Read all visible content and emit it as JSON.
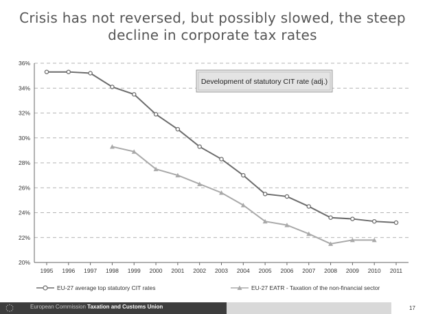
{
  "title": {
    "line1": "Crisis has not reversed, but possibly slowed, the steep",
    "line2": "decline in corporate tax rates"
  },
  "chart_data": {
    "type": "line",
    "annotation": "Development of statutory CIT rate (adj.)",
    "x": [
      "1995",
      "1996",
      "1997",
      "1998",
      "1999",
      "2000",
      "2001",
      "2002",
      "2003",
      "2004",
      "2005",
      "2006",
      "2007",
      "2008",
      "2009",
      "2010",
      "2011"
    ],
    "ylim": [
      20,
      36
    ],
    "yticks": [
      "20%",
      "22%",
      "24%",
      "26%",
      "28%",
      "30%",
      "32%",
      "34%",
      "36%"
    ],
    "grid": "horizontal dashed",
    "legend_position": "bottom",
    "series": [
      {
        "name": "EU-27 average top statutory CIT rates",
        "marker": "circle",
        "color": "#6b6b6b",
        "values": [
          35.3,
          35.3,
          35.2,
          34.1,
          33.5,
          31.9,
          30.7,
          29.3,
          28.3,
          27.0,
          25.5,
          25.3,
          24.5,
          23.6,
          23.5,
          23.3,
          23.2
        ]
      },
      {
        "name": "EU-27 EATR - Taxation of the non-financial sector",
        "marker": "triangle",
        "color": "#a9a9a9",
        "values": [
          null,
          null,
          null,
          29.3,
          28.9,
          27.5,
          27.0,
          26.3,
          25.6,
          24.6,
          23.3,
          23.0,
          22.3,
          21.5,
          21.8,
          21.8,
          null
        ]
      }
    ]
  },
  "legend": {
    "series1": "EU-27 average top statutory CIT rates",
    "series2": "EU-27 EATR - Taxation of the non-financial sector"
  },
  "footer": {
    "org": "European Commission",
    "dept": "Taxation and Customs Union",
    "page": "17"
  }
}
